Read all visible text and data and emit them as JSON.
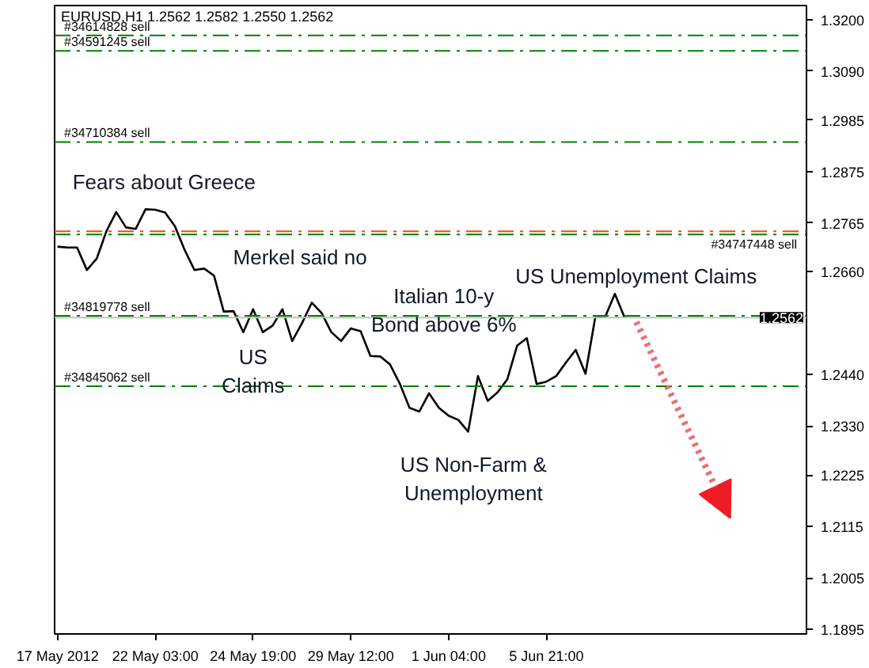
{
  "chart_data": {
    "type": "line",
    "title": "EURUSD,H1  1.2562 1.2582 1.2550 1.2562",
    "categories": [
      "17 May 2012",
      null,
      null,
      null,
      null,
      null,
      null,
      null,
      null,
      null,
      "22 May 03:00",
      null,
      null,
      null,
      null,
      null,
      null,
      null,
      null,
      null,
      "24 May 19:00",
      null,
      null,
      null,
      null,
      null,
      null,
      null,
      null,
      null,
      "29 May 12:00",
      null,
      null,
      null,
      null,
      null,
      null,
      null,
      null,
      null,
      "1 Jun 04:00",
      null,
      null,
      null,
      null,
      null,
      null,
      null,
      null,
      null,
      "5 Jun 21:00",
      null,
      null,
      null,
      null,
      null,
      null,
      null,
      null,
      null,
      null,
      null,
      null,
      null,
      null,
      null,
      null,
      null,
      null,
      null,
      null,
      null,
      null,
      null,
      null,
      null,
      null
    ],
    "series": [
      {
        "color": "#000000",
        "values": [
          1.2714,
          1.2712,
          1.2712,
          1.2664,
          1.2688,
          1.2747,
          1.2788,
          1.2755,
          1.2752,
          1.2794,
          1.2793,
          1.2787,
          1.2758,
          1.2707,
          1.2664,
          1.2667,
          1.2652,
          1.2575,
          1.2576,
          1.2531,
          1.258,
          1.2531,
          1.2545,
          1.258,
          1.2512,
          1.255,
          1.2594,
          1.2572,
          1.2531,
          1.2512,
          1.2539,
          1.2533,
          1.248,
          1.2479,
          1.2462,
          1.2421,
          1.2369,
          1.2361,
          1.24,
          1.2369,
          1.2352,
          1.2343,
          1.2318,
          1.2437,
          1.2384,
          1.2402,
          1.243,
          1.2502,
          1.2518,
          1.242,
          1.2425,
          1.2437,
          1.2466,
          1.2493,
          1.2442,
          1.2563,
          1.2563,
          1.2613,
          1.2562,
          null,
          null,
          null,
          null,
          null,
          null,
          null,
          null,
          null,
          null,
          null,
          null,
          null,
          null,
          null,
          null,
          null,
          null
        ]
      }
    ],
    "ylim": [
      1.1885,
      1.323
    ],
    "yticks": [
      {
        "value": 1.32,
        "label": "1.3200"
      },
      {
        "value": 1.309,
        "label": "1.3090"
      },
      {
        "value": 1.2985,
        "label": "1.2985"
      },
      {
        "value": 1.2875,
        "label": "1.2875"
      },
      {
        "value": 1.2765,
        "label": "1.2765"
      },
      {
        "value": 1.266,
        "label": "1.2660"
      },
      {
        "value": 1.244,
        "label": "1.2440"
      },
      {
        "value": 1.233,
        "label": "1.2330"
      },
      {
        "value": 1.2225,
        "label": "1.2225"
      },
      {
        "value": 1.2115,
        "label": "1.2115"
      },
      {
        "value": 1.2005,
        "label": "1.2005"
      },
      {
        "value": 1.1895,
        "label": "1.1895"
      }
    ],
    "grid": false,
    "marker": "none",
    "line_style": "solid",
    "ref_lines": [
      {
        "axis": "y",
        "value": 1.3166,
        "label": "#34614828 sell",
        "color": "#008000",
        "line_style": "dashdot"
      },
      {
        "axis": "y",
        "value": 1.3133,
        "label": "#34591245 sell",
        "color": "#008000",
        "line_style": "dashdot"
      },
      {
        "axis": "y",
        "value": 1.2938,
        "label": "#34710384 sell",
        "color": "#008000",
        "line_style": "dashdot"
      },
      {
        "axis": "y",
        "value": 1.2747,
        "label": null,
        "color": "#ff4500",
        "line_style": "dashdot"
      },
      {
        "axis": "y",
        "value": 1.274,
        "label": "#34747448 sell",
        "color": "#008000",
        "line_style": "dashdot"
      },
      {
        "axis": "y",
        "value": 1.2566,
        "label": "#34819778 sell",
        "color": "#008000",
        "line_style": "dashdot"
      },
      {
        "axis": "y",
        "value": 1.2562,
        "label": "1.2562",
        "color": "#c0c0c0",
        "line_style": "solid"
      },
      {
        "axis": "y",
        "value": 1.2415,
        "label": "#34845062 sell",
        "color": "#008000",
        "line_style": "dashdot"
      }
    ],
    "annotations": [
      "Fears about Greece",
      "Merkel said no",
      "US\nClaims",
      "Italian 10-y\nBond above 6%",
      "US Unemployment Claims",
      "US Non-Farm &\nUnemployment"
    ]
  }
}
